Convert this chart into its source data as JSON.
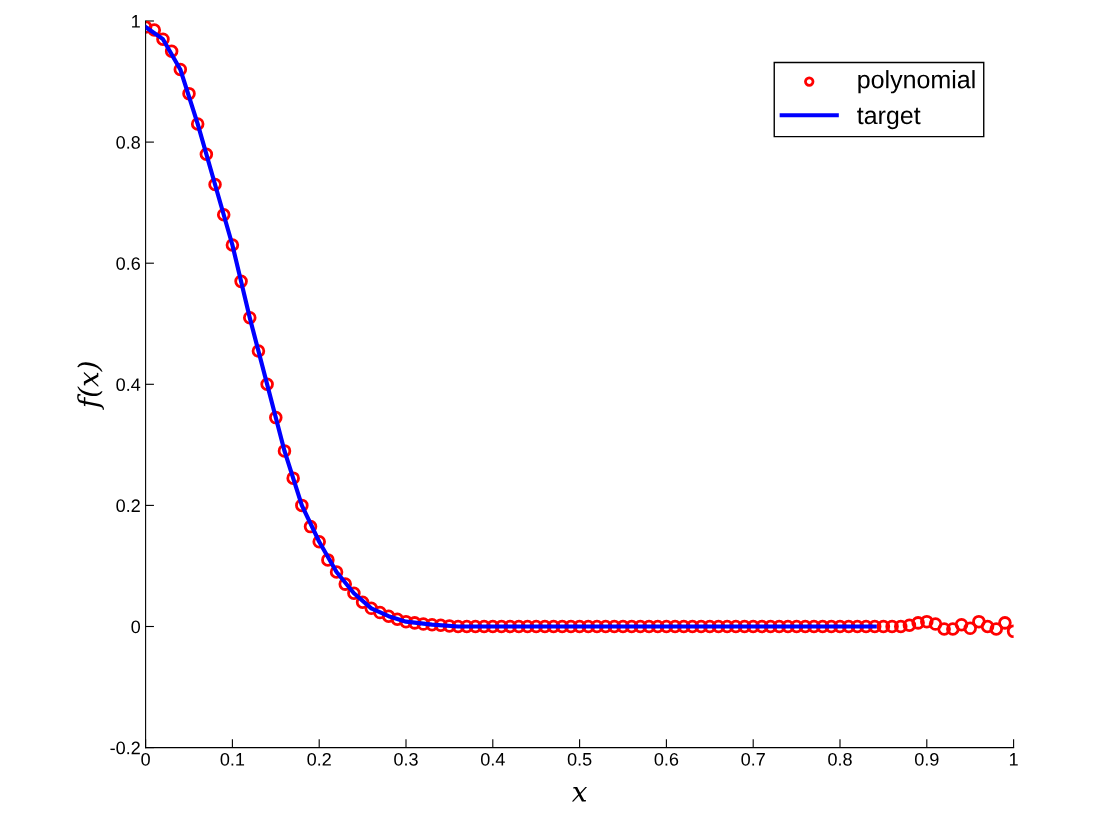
{
  "chart_data": {
    "type": "scatter",
    "xlabel": "x",
    "ylabel": "f(x)",
    "xlim": [
      0,
      1
    ],
    "ylim": [
      -0.2,
      1
    ],
    "xticks": [
      0,
      0.1,
      0.2,
      0.3,
      0.4,
      0.5,
      0.6,
      0.7,
      0.8,
      0.9,
      1
    ],
    "yticks": [
      -0.2,
      0,
      0.2,
      0.4,
      0.6,
      0.8,
      1
    ],
    "grid": false,
    "legend": "top right",
    "series": [
      {
        "name": "polynomial",
        "marker": "circle",
        "color": "#ff0000",
        "x": [
          0,
          0.01,
          0.02,
          0.03,
          0.04,
          0.05,
          0.06,
          0.07,
          0.08,
          0.09,
          0.1,
          0.11,
          0.12,
          0.13,
          0.14,
          0.15,
          0.16,
          0.17,
          0.18,
          0.19,
          0.2,
          0.21,
          0.22,
          0.23,
          0.24,
          0.25,
          0.26,
          0.27,
          0.28,
          0.29,
          0.3,
          0.31,
          0.32,
          0.33,
          0.34,
          0.35,
          0.36,
          0.37,
          0.38,
          0.39,
          0.4,
          0.41,
          0.42,
          0.43,
          0.44,
          0.45,
          0.46,
          0.47,
          0.48,
          0.49,
          0.5,
          0.51,
          0.52,
          0.53,
          0.54,
          0.55,
          0.56,
          0.57,
          0.58,
          0.59,
          0.6,
          0.61,
          0.62,
          0.63,
          0.64,
          0.65,
          0.66,
          0.67,
          0.68,
          0.69,
          0.7,
          0.71,
          0.72,
          0.73,
          0.74,
          0.75,
          0.76,
          0.77,
          0.78,
          0.79,
          0.8,
          0.81,
          0.82,
          0.83,
          0.84,
          0.85,
          0.86,
          0.87,
          0.88,
          0.89,
          0.9,
          0.91,
          0.92,
          0.93,
          0.94,
          0.95,
          0.96,
          0.97,
          0.98,
          0.99,
          1
        ],
        "values": [
          0.99,
          0.985,
          0.97,
          0.95,
          0.92,
          0.88,
          0.83,
          0.78,
          0.73,
          0.68,
          0.63,
          0.57,
          0.51,
          0.455,
          0.4,
          0.345,
          0.29,
          0.245,
          0.2,
          0.165,
          0.14,
          0.11,
          0.09,
          0.07,
          0.055,
          0.04,
          0.03,
          0.023,
          0.017,
          0.012,
          0.008,
          0.006,
          0.004,
          0.003,
          0.002,
          0.001,
          0,
          0,
          0,
          0,
          0,
          0,
          0,
          0,
          0,
          0,
          0,
          0,
          0,
          0,
          0,
          0,
          0,
          0,
          0,
          0,
          0,
          0,
          0,
          0,
          0,
          0,
          0,
          0,
          0,
          0,
          0,
          0,
          0,
          0,
          0,
          0,
          0,
          0,
          0,
          0,
          0,
          0,
          0,
          0,
          0,
          0,
          0,
          0,
          0,
          0,
          0,
          0,
          0.002,
          0.006,
          0.008,
          0.004,
          -0.004,
          -0.004,
          0.003,
          -0.003,
          0.008,
          0,
          -0.004,
          0.006,
          -0.008
        ]
      },
      {
        "name": "target",
        "type": "line",
        "marker": "none",
        "line_style": "solid",
        "color": "#0000ff",
        "x": [
          0,
          0.02,
          0.04,
          0.06,
          0.08,
          0.1,
          0.12,
          0.14,
          0.16,
          0.18,
          0.2,
          0.22,
          0.24,
          0.26,
          0.28,
          0.3,
          0.33,
          0.36,
          0.84
        ],
        "values": [
          0.99,
          0.97,
          0.92,
          0.83,
          0.73,
          0.63,
          0.51,
          0.4,
          0.29,
          0.2,
          0.14,
          0.09,
          0.055,
          0.03,
          0.017,
          0.008,
          0.003,
          0,
          0
        ]
      }
    ]
  }
}
